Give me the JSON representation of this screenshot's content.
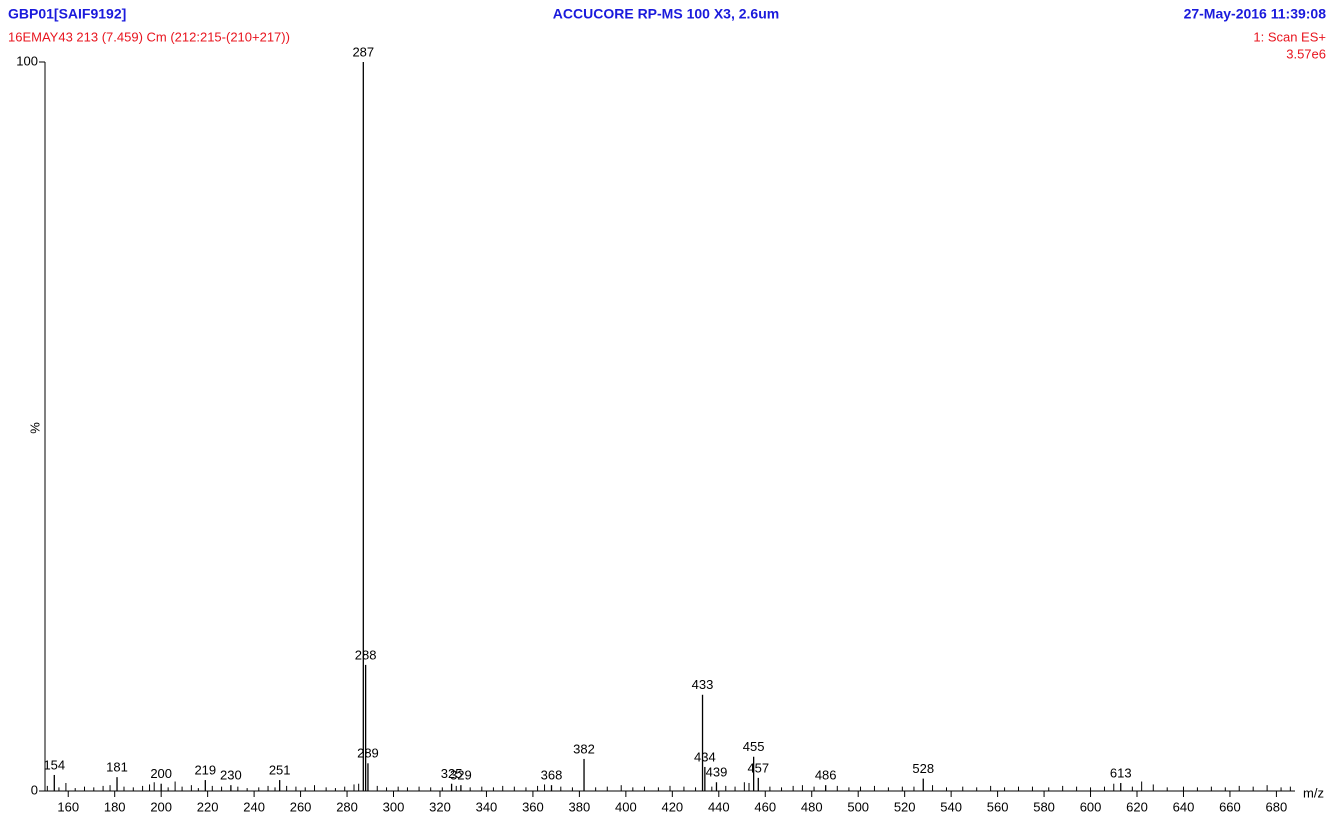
{
  "chart_data": {
    "type": "spectrum",
    "sample": "GBP01[SAIF9192]",
    "title": "ACCUCORE RP-MS 100 X3, 2.6um",
    "date": "27-May-2016  11:39:08",
    "subtitle": "16EMAY43 213 (7.459) Cm (212:215-(210+217))",
    "scan": "1: Scan ES+",
    "intensity": "3.57e6",
    "ylabel": "%",
    "xlabel": "m/z",
    "xlim": [
      150,
      688
    ],
    "ylim": [
      0,
      100
    ],
    "xticks": [
      160,
      180,
      200,
      220,
      240,
      260,
      280,
      300,
      320,
      340,
      360,
      380,
      400,
      420,
      440,
      460,
      480,
      500,
      520,
      540,
      560,
      580,
      600,
      620,
      640,
      660,
      680
    ],
    "yticks": [
      0,
      100
    ],
    "color": "#000000",
    "x": [
      154,
      181,
      200,
      219,
      230,
      251,
      287,
      288,
      289,
      325,
      329,
      368,
      382,
      433,
      434,
      439,
      455,
      457,
      486,
      528,
      613
    ],
    "values": [
      2.2,
      1.9,
      1.0,
      1.5,
      0.8,
      1.5,
      100,
      17.3,
      3.8,
      1.0,
      0.8,
      0.8,
      4.4,
      13.2,
      3.3,
      1.2,
      4.7,
      1.8,
      0.8,
      1.7,
      1.1
    ],
    "minor_peaks": {
      "x": [
        150,
        151,
        156,
        159,
        163,
        167,
        171,
        175,
        178,
        184,
        188,
        192,
        195,
        197,
        203,
        206,
        209,
        213,
        216,
        222,
        226,
        233,
        237,
        242,
        246,
        249,
        254,
        258,
        262,
        266,
        271,
        275,
        279,
        283,
        285,
        293,
        297,
        302,
        306,
        311,
        316,
        321,
        327,
        333,
        338,
        343,
        347,
        352,
        357,
        362,
        365,
        372,
        377,
        387,
        392,
        398,
        403,
        408,
        414,
        419,
        425,
        430,
        437,
        443,
        447,
        451,
        453,
        462,
        467,
        472,
        476,
        481,
        491,
        496,
        501,
        507,
        513,
        519,
        524,
        532,
        538,
        545,
        551,
        557,
        563,
        569,
        575,
        582,
        588,
        594,
        600,
        606,
        610,
        618,
        622,
        627,
        633,
        640,
        646,
        652,
        658,
        664,
        670,
        676,
        682,
        686
      ],
      "values": [
        1.3,
        0.7,
        0.5,
        1.1,
        0.4,
        0.6,
        0.5,
        0.7,
        0.8,
        0.6,
        0.5,
        0.7,
        0.9,
        1.2,
        0.5,
        1.3,
        0.6,
        0.8,
        0.4,
        0.7,
        0.6,
        0.6,
        0.4,
        0.5,
        0.7,
        0.5,
        0.7,
        0.6,
        0.5,
        0.8,
        0.5,
        0.4,
        0.6,
        0.9,
        1.0,
        0.7,
        0.5,
        0.6,
        0.5,
        0.6,
        0.5,
        0.5,
        0.7,
        0.5,
        0.6,
        0.5,
        0.7,
        0.6,
        0.5,
        0.7,
        0.9,
        0.6,
        0.5,
        0.5,
        0.6,
        0.8,
        0.5,
        0.6,
        0.5,
        0.7,
        0.6,
        0.5,
        0.6,
        0.7,
        0.6,
        1.2,
        1.1,
        0.6,
        0.5,
        0.7,
        0.8,
        0.6,
        0.7,
        0.5,
        0.6,
        0.7,
        0.5,
        0.6,
        0.6,
        0.8,
        0.5,
        0.6,
        0.5,
        0.7,
        0.5,
        0.6,
        0.6,
        0.5,
        0.7,
        0.6,
        0.5,
        0.6,
        1.0,
        0.6,
        1.3,
        0.9,
        0.5,
        0.6,
        0.5,
        0.6,
        0.5,
        0.7,
        0.6,
        0.8,
        0.5,
        0.6
      ]
    }
  }
}
